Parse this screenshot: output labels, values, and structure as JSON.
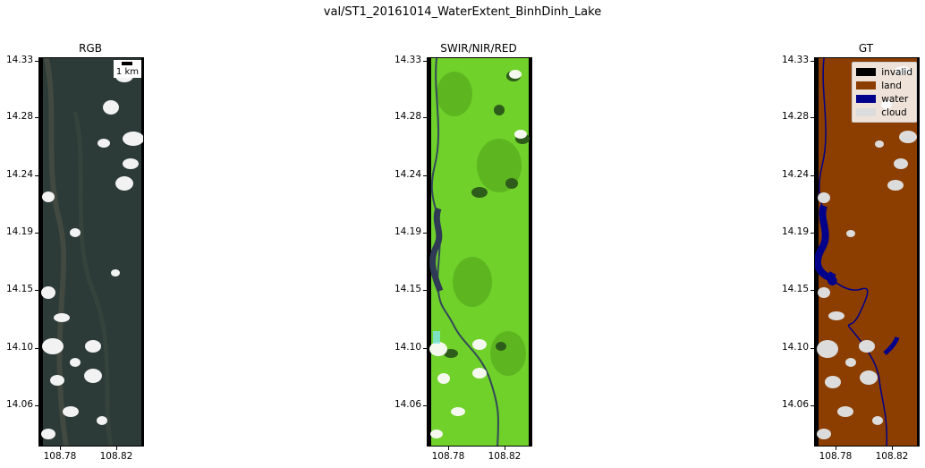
{
  "suptitle": "val/ST1_20161014_WaterExtent_BinhDinh_Lake",
  "panels": [
    {
      "title": "RGB"
    },
    {
      "title": "SWIR/NIR/RED"
    },
    {
      "title": "GT"
    }
  ],
  "y_ticks": [
    "14.33",
    "14.28",
    "14.24",
    "14.19",
    "14.15",
    "14.10",
    "14.06"
  ],
  "x_ticks": [
    "108.78",
    "108.82"
  ],
  "scalebar": {
    "label": "1 km"
  },
  "legend": [
    {
      "label": "invalid",
      "color": "#000000"
    },
    {
      "label": "land",
      "color": "#8B3E00"
    },
    {
      "label": "water",
      "color": "#00008B"
    },
    {
      "label": "cloud",
      "color": "#DCDCDC"
    }
  ]
}
